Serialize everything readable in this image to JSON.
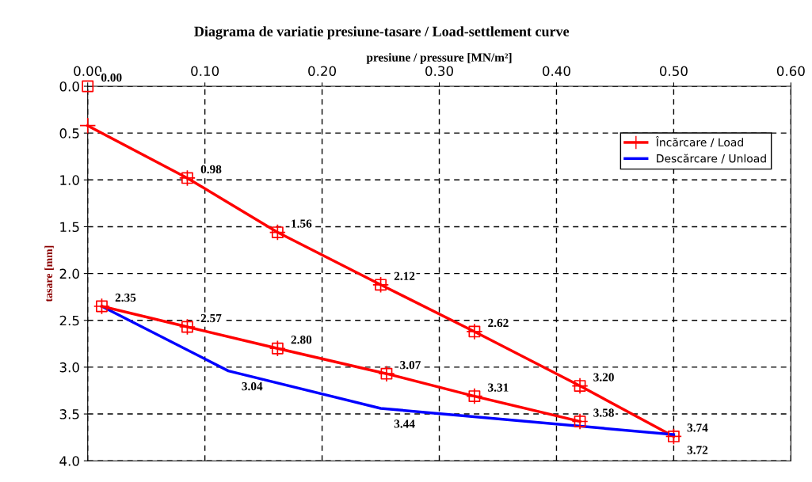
{
  "chart_data": {
    "type": "line",
    "title": "Diagrama de variatie presiune-tasare / Load-settlement curve",
    "xlabel": "presiune / pressure [MN/m²]",
    "ylabel": "tasare [mm]",
    "xlim": [
      0,
      0.6
    ],
    "xticks": [
      {
        "value": 0,
        "label": "0.00"
      },
      {
        "value": 0.1,
        "label": "0.10"
      },
      {
        "value": 0.2,
        "label": "0.20"
      },
      {
        "value": 0.3,
        "label": "0.30"
      },
      {
        "value": 0.4,
        "label": "0.40"
      },
      {
        "value": 0.5,
        "label": "0.50"
      },
      {
        "value": 0.6,
        "label": "0.60"
      }
    ],
    "ylim": [
      4,
      0
    ],
    "yticks": [
      {
        "value": 0,
        "label": "0.0"
      },
      {
        "value": 0.5,
        "label": "0.5"
      },
      {
        "value": 1,
        "label": "1.0"
      },
      {
        "value": 1.5,
        "label": "1.5"
      },
      {
        "value": 2,
        "label": "2.0"
      },
      {
        "value": 2.5,
        "label": "2.5"
      },
      {
        "value": 3,
        "label": "3.0"
      },
      {
        "value": 3.5,
        "label": "3.5"
      },
      {
        "value": 4,
        "label": "4.0"
      }
    ],
    "grid": true,
    "legend": "top right",
    "series": [
      {
        "name": "Încărcare / Load",
        "color": "#ff0000",
        "marker": "cross",
        "line_style": "solid",
        "x": [
          0,
          0.085,
          0.162,
          0.25,
          0.33,
          0.42,
          0.5
        ],
        "values": [
          0.42,
          0.98,
          1.56,
          2.12,
          2.62,
          3.2,
          3.74
        ]
      },
      {
        "name": "Descărcare / Unload",
        "color": "#0000ff",
        "marker": "none",
        "line_style": "solid",
        "x": [
          0.5,
          0.25,
          0.12,
          0.012
        ],
        "values": [
          3.72,
          3.44,
          3.04,
          2.35
        ],
        "value_labels": [
          "3.72",
          "3.44",
          "3.04",
          null
        ]
      },
      {
        "color": "#ff0000",
        "marker": "cross",
        "line_style": "solid",
        "x": [
          0.012,
          0.085,
          0.162,
          0.255,
          0.33,
          0.42
        ],
        "values": [
          2.35,
          2.57,
          2.8,
          3.07,
          3.31,
          3.58
        ]
      },
      {
        "type": "scatter",
        "color": "#ff0000",
        "marker": "square",
        "x": [
          0,
          0.085,
          0.162,
          0.25,
          0.33,
          0.42,
          0.5,
          0.012,
          0.085,
          0.162,
          0.255,
          0.33,
          0.42
        ],
        "values": [
          0,
          0.98,
          1.56,
          2.12,
          2.62,
          3.2,
          3.74,
          2.35,
          2.57,
          2.8,
          3.07,
          3.31,
          3.58
        ],
        "value_labels": [
          "0.00",
          "0.98",
          "1.56",
          "2.12",
          "2.62",
          "3.20",
          "3.74",
          "2.35",
          "2.57",
          "2.80",
          "3.07",
          "3.31",
          "3.58"
        ]
      }
    ]
  }
}
